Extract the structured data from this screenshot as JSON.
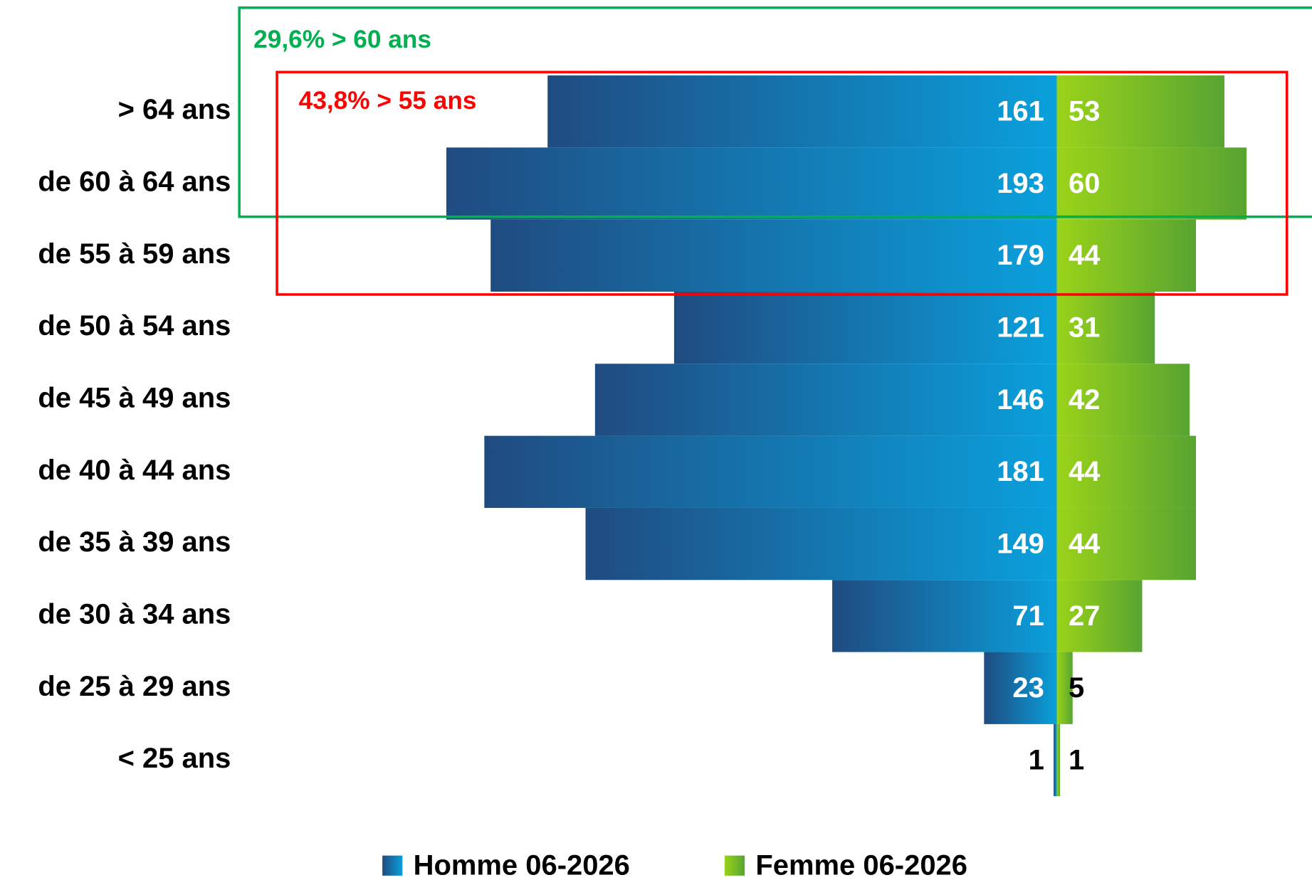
{
  "chart_data": {
    "type": "pyramid",
    "categories": [
      "> 64 ans",
      "de 60 à 64 ans",
      "de 55 à 59 ans",
      "de 50 à 54 ans",
      "de 45 à 49 ans",
      "de 40 à 44 ans",
      "de 35 à 39 ans",
      "de 30 à 34 ans",
      "de 25 à 29 ans",
      "< 25 ans"
    ],
    "series": [
      {
        "name": "Homme 06-2026",
        "color": "#1f5a96",
        "values": [
          161,
          193,
          179,
          121,
          146,
          181,
          149,
          71,
          23,
          1
        ]
      },
      {
        "name": "Femme 06-2026",
        "color": "#7cc225",
        "values": [
          53,
          60,
          44,
          31,
          42,
          44,
          44,
          27,
          5,
          1
        ]
      }
    ],
    "annotations": [
      {
        "text": "29,6% > 60 ans",
        "color": "#00b050"
      },
      {
        "text": "43,8% > 55 ans",
        "color": "#ff0000"
      }
    ],
    "legend": "bottom"
  }
}
